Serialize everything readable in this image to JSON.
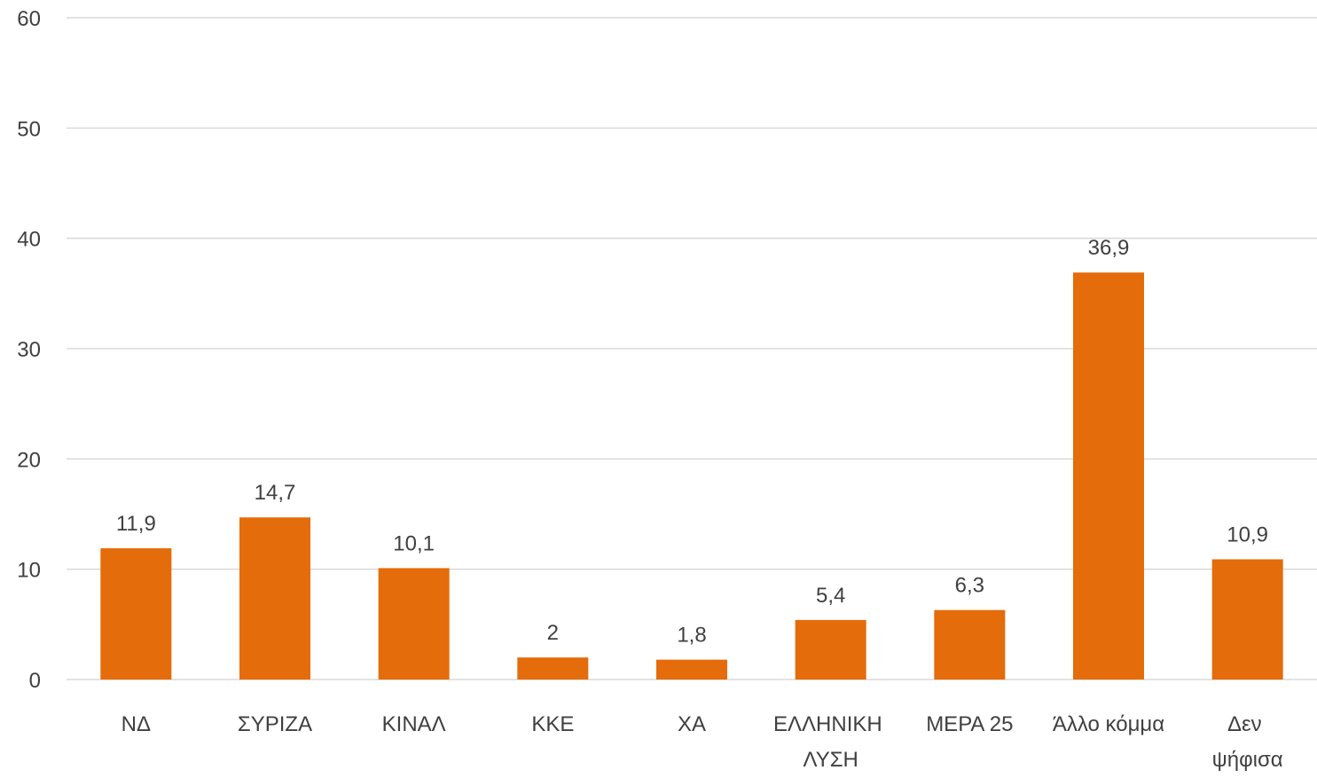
{
  "chart_data": {
    "type": "bar",
    "categories": [
      "ΝΔ",
      "ΣΥΡΙΖΑ",
      "ΚΙΝΑΛ",
      "ΚΚΕ",
      "ΧΑ",
      "ΕΛΛΗΝΙΚΗ ΛΥΣΗ",
      "ΜΕΡΑ 25",
      "Άλλο κόμμα",
      "Δεν ψήφισα"
    ],
    "values": [
      11.9,
      14.7,
      10.1,
      2,
      1.8,
      5.4,
      6.3,
      36.9,
      10.9
    ],
    "value_labels": [
      "11,9",
      "14,7",
      "10,1",
      "2",
      "1,8",
      "5,4",
      "6,3",
      "36,9",
      "10,9"
    ],
    "color": "#e46c0a",
    "ylim": [
      0,
      60
    ],
    "yticks": [
      0,
      10,
      20,
      30,
      40,
      50,
      60
    ],
    "grid": true
  }
}
